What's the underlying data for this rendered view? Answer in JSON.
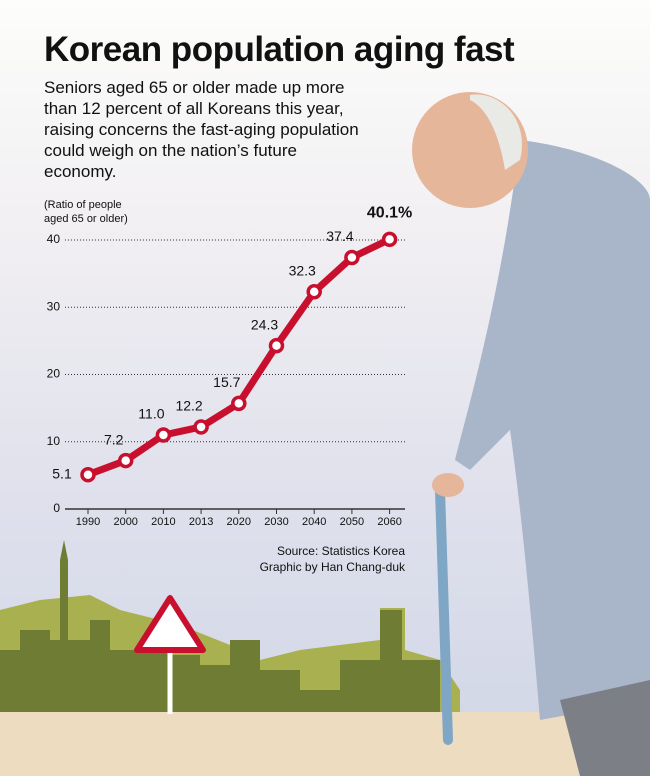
{
  "chart_data": {
    "type": "line",
    "title": "Korean population aging fast",
    "subtitle": "Seniors aged 65 or older made up more than 12 percent of all Koreans this year, raising concerns the fast-aging population could weigh on the nation’s future economy.",
    "y_label": [
      "(Ratio of people",
      "aged 65 or older)"
    ],
    "categories": [
      "1990",
      "2000",
      "2010",
      "2013",
      "2020",
      "2030",
      "2040",
      "2050",
      "2060"
    ],
    "values": [
      5.1,
      7.2,
      11.0,
      12.2,
      15.7,
      24.3,
      32.3,
      37.4,
      40.1
    ],
    "value_labels": [
      "5.1",
      "7.2",
      "11.0",
      "12.2",
      "15.7",
      "24.3",
      "32.3",
      "37.4",
      "40.1%"
    ],
    "color": "#c8102e",
    "ylim": [
      0,
      40
    ],
    "yticks": [
      0,
      10,
      20,
      30,
      40
    ],
    "grid": true,
    "source": "Source: Statistics Korea",
    "credit": "Graphic by Han Chang-duk"
  }
}
